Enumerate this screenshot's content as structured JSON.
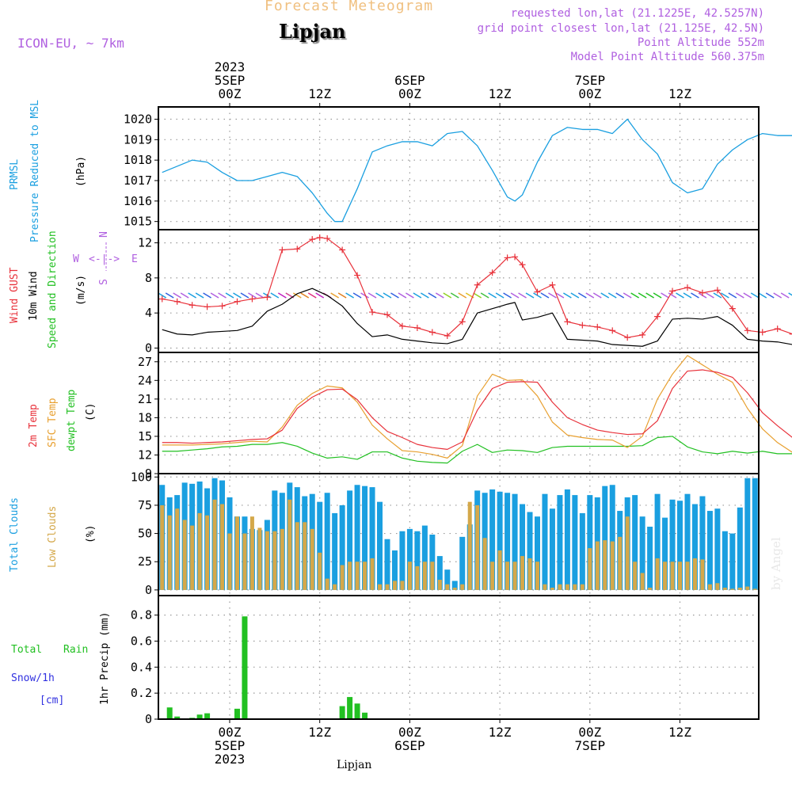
{
  "header": {
    "title": "Lipjan",
    "top_title": "Forecast Meteogram",
    "model": "ICON-EU, ~ 7km",
    "info": [
      "requested lon,lat (21.1225E, 42.5257N)",
      "grid point closest lon,lat (21.125E, 42.5N)",
      "Point Altitude 552m",
      "Model Point Altitude 560.375m"
    ],
    "footer": "Lipjan",
    "watermark": "by Angel"
  },
  "time_axis": {
    "top_labels": [
      {
        "h": 0,
        "lines": [
          "2023",
          "5SEP",
          "00Z"
        ]
      },
      {
        "h": 12,
        "lines": [
          "12Z"
        ]
      },
      {
        "h": 24,
        "lines": [
          "6SEP",
          "00Z"
        ]
      },
      {
        "h": 36,
        "lines": [
          "12Z"
        ]
      },
      {
        "h": 48,
        "lines": [
          "7SEP",
          "00Z"
        ]
      },
      {
        "h": 60,
        "lines": [
          "12Z"
        ]
      }
    ],
    "bottom_labels": [
      {
        "h": 0,
        "lines": [
          "00Z",
          "5SEP",
          "2023"
        ]
      },
      {
        "h": 12,
        "lines": [
          "12Z"
        ]
      },
      {
        "h": 24,
        "lines": [
          "00Z",
          "6SEP"
        ]
      },
      {
        "h": 36,
        "lines": [
          "12Z"
        ]
      },
      {
        "h": 48,
        "lines": [
          "00Z",
          "7SEP"
        ]
      },
      {
        "h": 60,
        "lines": [
          "12Z"
        ]
      }
    ]
  },
  "labels": {
    "pressure": [
      "PRMSL",
      "Pressure Reduced to MSL",
      "(hPa)"
    ],
    "wind": [
      "Wind GUST",
      "10m Wind",
      "Speed and Direction",
      "(m/s)"
    ],
    "temp": [
      "2m Temp",
      "SFC Temp",
      "dewpt Temp",
      "(C)"
    ],
    "clouds": [
      "Total Clouds",
      "Low Clouds",
      "(%)"
    ],
    "precip": [
      "Total",
      "Rain",
      "Snow/1h",
      "[cm]",
      "1hr Precip (mm)"
    ],
    "compass": [
      "N",
      "W",
      "E",
      "S",
      "<-|->"
    ]
  },
  "colors": {
    "pressure": "#1a9fe0",
    "gust": "#e8313a",
    "wind": "#000000",
    "temp2m": "#e8313a",
    "sfc": "#e8a030",
    "dewpt": "#22c022",
    "total_clouds": "#1a9fe0",
    "low_clouds": "#d4a84a",
    "rain": "#22c022",
    "snow": "#3030e0",
    "purple": "#b060e0",
    "title_orange": "#f0c080"
  },
  "chart_data": [
    {
      "type": "line",
      "panel": "pressure",
      "x_unit": "hours from 5SEP 00Z",
      "ylim": [
        1014.6,
        1020.6
      ],
      "yticks": [
        1015,
        1016,
        1017,
        1018,
        1019,
        1020
      ],
      "grid": true,
      "series": [
        {
          "name": "PRMSL",
          "x": [
            -9,
            -7,
            -5,
            -3,
            -1,
            1,
            3,
            5,
            7,
            9,
            11,
            13,
            14,
            15,
            17,
            19,
            21,
            23,
            25,
            27,
            29,
            31,
            33,
            35,
            37,
            38,
            39,
            41,
            43,
            45,
            47,
            49,
            51,
            53,
            55,
            57,
            59,
            61,
            63,
            65,
            67,
            69,
            71,
            73,
            75
          ],
          "y": [
            1017.4,
            1017.7,
            1018.0,
            1017.9,
            1017.4,
            1017.0,
            1017.0,
            1017.2,
            1017.4,
            1017.2,
            1016.4,
            1015.4,
            1015.0,
            1015.0,
            1016.6,
            1018.4,
            1018.7,
            1018.9,
            1018.9,
            1018.7,
            1019.3,
            1019.4,
            1018.7,
            1017.5,
            1016.2,
            1016.0,
            1016.3,
            1017.9,
            1019.2,
            1019.6,
            1019.5,
            1019.5,
            1019.3,
            1020.0,
            1019.0,
            1018.3,
            1016.9,
            1016.4,
            1016.6,
            1017.8,
            1018.5,
            1019.0,
            1019.3,
            1019.2,
            1019.2
          ]
        }
      ]
    },
    {
      "type": "line",
      "panel": "wind",
      "x_unit": "hours from 5SEP 00Z",
      "ylim": [
        -0.5,
        13.5
      ],
      "yticks": [
        0,
        4,
        8,
        12
      ],
      "grid": true,
      "series": [
        {
          "name": "Wind GUST",
          "x": [
            -9,
            -7,
            -5,
            -3,
            -1,
            1,
            3,
            5,
            7,
            9,
            11,
            12,
            13,
            15,
            17,
            19,
            21,
            23,
            25,
            27,
            29,
            31,
            33,
            35,
            37,
            38,
            39,
            41,
            43,
            45,
            47,
            49,
            51,
            53,
            55,
            57,
            59,
            61,
            63,
            65,
            67,
            69,
            71,
            73,
            75
          ],
          "y": [
            5.6,
            5.3,
            4.9,
            4.7,
            4.8,
            5.3,
            5.6,
            5.8,
            11.2,
            11.3,
            12.4,
            12.6,
            12.5,
            11.2,
            8.3,
            4.1,
            3.8,
            2.5,
            2.3,
            1.8,
            1.4,
            3.0,
            7.2,
            8.6,
            10.3,
            10.4,
            9.5,
            6.4,
            7.2,
            3.0,
            2.6,
            2.4,
            2.0,
            1.2,
            1.5,
            3.6,
            6.5,
            6.9,
            6.3,
            6.6,
            4.5,
            2.0,
            1.8,
            2.2,
            1.6
          ]
        },
        {
          "name": "10m Wind",
          "x": [
            -9,
            -7,
            -5,
            -3,
            -1,
            1,
            3,
            5,
            7,
            9,
            11,
            13,
            15,
            17,
            19,
            21,
            23,
            25,
            27,
            29,
            31,
            33,
            35,
            37,
            38,
            39,
            41,
            43,
            45,
            47,
            49,
            51,
            53,
            55,
            57,
            59,
            61,
            63,
            65,
            67,
            69,
            71,
            73,
            75
          ],
          "y": [
            2.1,
            1.6,
            1.5,
            1.8,
            1.9,
            2.0,
            2.5,
            4.2,
            5.0,
            6.2,
            6.8,
            6.0,
            4.8,
            2.8,
            1.3,
            1.5,
            1.0,
            0.8,
            0.6,
            0.5,
            1.0,
            4.0,
            4.5,
            5.0,
            5.2,
            3.2,
            3.5,
            4.0,
            1.0,
            0.9,
            0.8,
            0.4,
            0.3,
            0.2,
            0.8,
            3.3,
            3.4,
            3.3,
            3.6,
            2.6,
            1.0,
            0.8,
            0.7,
            0.4
          ]
        }
      ]
    },
    {
      "type": "line",
      "panel": "temperature",
      "x_unit": "hours from 5SEP 00Z",
      "ylim": [
        9,
        28.5
      ],
      "yticks": [
        9,
        12,
        15,
        18,
        21,
        24,
        27
      ],
      "grid": true,
      "series": [
        {
          "name": "2m Temp",
          "x": [
            -9,
            -7,
            -5,
            -3,
            -1,
            1,
            3,
            5,
            7,
            9,
            11,
            13,
            15,
            17,
            19,
            21,
            23,
            25,
            27,
            29,
            31,
            33,
            35,
            37,
            39,
            41,
            43,
            45,
            47,
            49,
            51,
            53,
            55,
            57,
            59,
            61,
            63,
            65,
            67,
            69,
            71,
            73,
            75
          ],
          "y": [
            14.0,
            14.0,
            13.9,
            14.0,
            14.1,
            14.3,
            14.5,
            14.6,
            16.0,
            19.5,
            21.3,
            22.5,
            22.6,
            20.9,
            18.0,
            15.8,
            14.8,
            13.7,
            13.2,
            12.9,
            14.1,
            19.2,
            22.7,
            23.7,
            23.8,
            23.7,
            20.5,
            18.0,
            16.9,
            16.0,
            15.6,
            15.3,
            15.4,
            17.5,
            22.7,
            25.5,
            25.7,
            25.3,
            24.5,
            22.0,
            18.8,
            16.7,
            14.8
          ]
        },
        {
          "name": "SFC Temp",
          "x": [
            -9,
            -7,
            -5,
            -3,
            -1,
            1,
            3,
            5,
            7,
            9,
            11,
            13,
            15,
            17,
            19,
            21,
            23,
            25,
            27,
            29,
            31,
            33,
            35,
            37,
            39,
            41,
            43,
            45,
            47,
            49,
            51,
            53,
            55,
            57,
            59,
            61,
            63,
            65,
            67,
            69,
            71,
            73,
            75
          ],
          "y": [
            13.6,
            13.6,
            13.6,
            13.7,
            13.8,
            14.0,
            14.2,
            14.1,
            16.5,
            20.0,
            21.9,
            23.1,
            22.8,
            20.5,
            16.8,
            14.6,
            12.7,
            12.5,
            12.1,
            11.5,
            13.5,
            21.5,
            25.0,
            24.0,
            24.1,
            21.5,
            17.3,
            15.2,
            14.8,
            14.5,
            14.4,
            13.2,
            15.0,
            21.0,
            25.0,
            28.0,
            26.5,
            25.0,
            23.7,
            19.5,
            16.2,
            14.0,
            12.4
          ]
        },
        {
          "name": "dewpt Temp",
          "x": [
            -9,
            -7,
            -5,
            -3,
            -1,
            1,
            3,
            5,
            7,
            9,
            11,
            13,
            15,
            17,
            19,
            21,
            23,
            25,
            27,
            29,
            31,
            33,
            35,
            37,
            39,
            41,
            43,
            45,
            47,
            49,
            51,
            53,
            55,
            57,
            59,
            61,
            63,
            65,
            67,
            69,
            71,
            73,
            75
          ],
          "y": [
            12.6,
            12.6,
            12.8,
            13.0,
            13.3,
            13.4,
            13.7,
            13.7,
            14.0,
            13.4,
            12.3,
            11.5,
            11.7,
            11.3,
            12.5,
            12.5,
            11.5,
            11.0,
            10.8,
            10.7,
            12.6,
            13.7,
            12.4,
            12.8,
            12.7,
            12.4,
            13.2,
            13.4,
            13.4,
            13.4,
            13.4,
            13.4,
            13.5,
            14.8,
            15.0,
            13.3,
            12.5,
            12.2,
            12.6,
            12.3,
            12.6,
            12.2,
            12.2
          ]
        }
      ]
    },
    {
      "type": "bar",
      "panel": "clouds",
      "x_unit": "hours from 5SEP 00Z",
      "x_start": -9,
      "x_step": 1,
      "ylim": [
        -5,
        103
      ],
      "yticks": [
        0,
        25,
        50,
        75,
        100
      ],
      "grid": true,
      "series": [
        {
          "name": "Total Clouds",
          "values": [
            93,
            82,
            84,
            95,
            94,
            96,
            90,
            99,
            97,
            82,
            65,
            65,
            54,
            53,
            62,
            88,
            86,
            95,
            91,
            83,
            85,
            78,
            86,
            68,
            75,
            88,
            93,
            92,
            91,
            78,
            45,
            35,
            52,
            54,
            52,
            57,
            49,
            30,
            18,
            8,
            47,
            58,
            88,
            86,
            89,
            87,
            86,
            85,
            76,
            69,
            65,
            85,
            72,
            84,
            89,
            84,
            68,
            84,
            82,
            92,
            93,
            70,
            82,
            84,
            65,
            56,
            85,
            64,
            80,
            79,
            85,
            76,
            83,
            70,
            72,
            52,
            50,
            73,
            99,
            99
          ]
        },
        {
          "name": "Low Clouds",
          "values": [
            75,
            66,
            72,
            62,
            57,
            68,
            66,
            80,
            76,
            50,
            65,
            50,
            65,
            55,
            52,
            52,
            54,
            80,
            60,
            60,
            54,
            33,
            10,
            5,
            22,
            25,
            25,
            25,
            28,
            5,
            5,
            8,
            8,
            25,
            21,
            25,
            25,
            9,
            5,
            2,
            5,
            78,
            75,
            46,
            25,
            35,
            25,
            25,
            30,
            28,
            25,
            5,
            2,
            5,
            5,
            5,
            5,
            37,
            43,
            44,
            43,
            47,
            65,
            25,
            15,
            2,
            28,
            25,
            25,
            25,
            25,
            28,
            27,
            5,
            6,
            2,
            1,
            2,
            3,
            1
          ]
        }
      ]
    },
    {
      "type": "bar",
      "panel": "precip",
      "x_unit": "hours from 5SEP 00Z",
      "ylim": [
        0,
        0.95
      ],
      "yticks": [
        0,
        0.2,
        0.4,
        0.6,
        0.8
      ],
      "grid": true,
      "series": [
        {
          "name": "Total Rain",
          "x": [
            -8,
            -7,
            -5,
            -4,
            -3,
            1,
            2,
            15,
            16,
            17,
            18,
            48
          ],
          "values": [
            0.09,
            0.02,
            0.01,
            0.035,
            0.045,
            0.08,
            0.79,
            0.1,
            0.17,
            0.12,
            0.05,
            0.005
          ]
        }
      ]
    }
  ]
}
